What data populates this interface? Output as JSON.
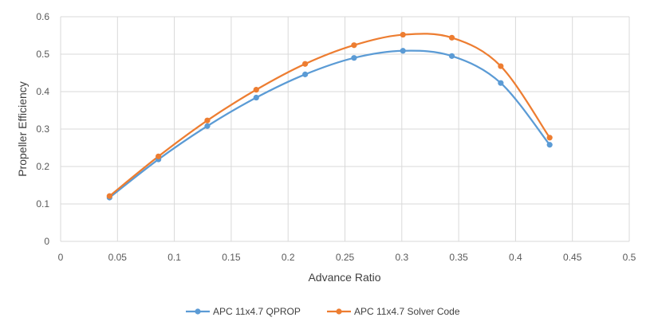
{
  "chart_data": {
    "type": "line",
    "title": "",
    "xlabel": "Advance Ratio",
    "ylabel": "Propeller Efficiency",
    "xlim": [
      0,
      0.5
    ],
    "ylim": [
      0,
      0.6
    ],
    "x_ticks": [
      "0",
      "0.05",
      "0.1",
      "0.15",
      "0.2",
      "0.25",
      "0.3",
      "0.35",
      "0.4",
      "0.45",
      "0.5"
    ],
    "y_ticks": [
      "0",
      "0.1",
      "0.2",
      "0.3",
      "0.4",
      "0.5",
      "0.6"
    ],
    "grid": true,
    "legend_position": "bottom",
    "smooth": true,
    "series": [
      {
        "name": "APC 11x4.7 QPROP",
        "color": "#5b9bd5",
        "x": [
          0.043,
          0.086,
          0.129,
          0.172,
          0.215,
          0.258,
          0.301,
          0.344,
          0.387,
          0.43
        ],
        "y": [
          0.117,
          0.219,
          0.308,
          0.384,
          0.446,
          0.49,
          0.509,
          0.495,
          0.423,
          0.258
        ]
      },
      {
        "name": "APC 11x4.7 Solver Code",
        "color": "#ed7d31",
        "x": [
          0.043,
          0.086,
          0.129,
          0.172,
          0.215,
          0.258,
          0.301,
          0.344,
          0.387,
          0.43
        ],
        "y": [
          0.121,
          0.227,
          0.323,
          0.405,
          0.474,
          0.524,
          0.552,
          0.544,
          0.468,
          0.277
        ]
      }
    ]
  }
}
